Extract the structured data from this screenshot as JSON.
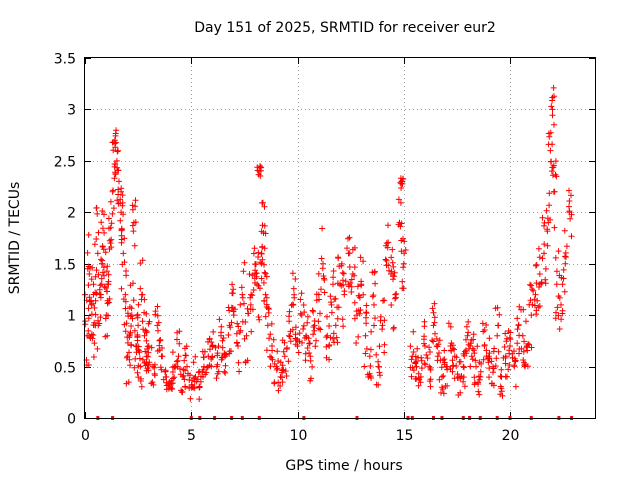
{
  "chart_data": {
    "type": "scatter",
    "title": "Day 151 of 2025, SRMTID for receiver eur2",
    "xlabel": "GPS time / hours",
    "ylabel": "SRMTID / TECUs",
    "xlim": [
      0,
      24
    ],
    "ylim": [
      0,
      3.5
    ],
    "xticks": [
      0,
      5,
      10,
      15,
      20
    ],
    "xtick_labels": [
      "0",
      "5",
      "10",
      "15",
      "20"
    ],
    "yticks": [
      0,
      0.5,
      1,
      1.5,
      2,
      2.5,
      3,
      3.5
    ],
    "ytick_labels": [
      "0",
      "0.5",
      "1",
      "1.5",
      "2",
      "2.5",
      "3",
      "3.5"
    ],
    "grid": true,
    "marker": "+",
    "series_color": "#ff0000",
    "zero_markers_x": [
      0.6,
      1.3,
      5.0,
      5.4,
      6.1,
      6.9,
      7.4,
      8.2,
      10.3,
      12.8,
      15.2,
      15.4,
      16.4,
      16.8,
      17.8,
      18.1,
      18.6,
      19.4,
      20.0,
      21.0,
      22.3,
      22.9
    ],
    "points": {
      "x": [
        0.0,
        0.1,
        0.2,
        0.3,
        0.4,
        0.5,
        0.6,
        0.7,
        0.8,
        0.9,
        1.0,
        1.1,
        1.2,
        1.3,
        1.4,
        1.5,
        1.6,
        1.7,
        1.8,
        1.9,
        2.0,
        2.1,
        2.2,
        2.3,
        2.4,
        2.5,
        2.6,
        2.7,
        2.8,
        2.9,
        3.0,
        3.2,
        3.4,
        3.6,
        3.8,
        4.0,
        4.2,
        4.4,
        4.6,
        4.8,
        5.0,
        5.2,
        5.4,
        5.6,
        5.8,
        6.0,
        6.2,
        6.4,
        6.6,
        6.8,
        7.0,
        7.2,
        7.4,
        7.6,
        7.8,
        8.0,
        8.1,
        8.2,
        8.3,
        8.4,
        8.5,
        8.6,
        8.8,
        9.0,
        9.2,
        9.4,
        9.6,
        9.8,
        10.0,
        10.2,
        10.4,
        10.6,
        10.8,
        11.0,
        11.2,
        11.4,
        11.6,
        11.8,
        12.0,
        12.2,
        12.4,
        12.6,
        12.8,
        13.0,
        13.2,
        13.4,
        13.6,
        13.8,
        14.0,
        14.2,
        14.4,
        14.6,
        14.8,
        14.9,
        15.0,
        15.4,
        15.6,
        15.8,
        16.0,
        16.2,
        16.4,
        16.6,
        16.8,
        17.0,
        17.2,
        17.4,
        17.6,
        17.8,
        18.0,
        18.2,
        18.4,
        18.6,
        18.8,
        19.0,
        19.2,
        19.4,
        19.6,
        19.8,
        20.0,
        20.2,
        20.4,
        20.6,
        20.8,
        21.0,
        21.2,
        21.4,
        21.6,
        21.8,
        21.9,
        22.0,
        22.1,
        22.2,
        22.4,
        22.6,
        22.8
      ],
      "y": [
        1.2,
        0.8,
        1.4,
        1.1,
        1.3,
        0.9,
        1.6,
        1.2,
        1.5,
        1.8,
        1.0,
        1.3,
        1.7,
        2.2,
        2.7,
        2.5,
        2.3,
        2.0,
        1.6,
        1.2,
        0.6,
        0.8,
        1.0,
        1.9,
        0.7,
        0.9,
        0.5,
        1.2,
        0.8,
        0.6,
        0.7,
        0.5,
        0.9,
        0.6,
        0.4,
        0.3,
        0.5,
        0.6,
        0.4,
        0.5,
        0.3,
        0.4,
        0.3,
        0.5,
        0.6,
        0.7,
        0.5,
        0.8,
        0.6,
        0.9,
        1.0,
        0.7,
        1.2,
        0.8,
        1.1,
        1.4,
        1.3,
        2.4,
        1.6,
        1.8,
        1.2,
        0.9,
        0.7,
        0.5,
        0.4,
        0.6,
        0.8,
        1.1,
        0.7,
        1.0,
        0.8,
        0.6,
        0.9,
        1.2,
        1.5,
        0.8,
        1.1,
        0.9,
        1.3,
        1.2,
        1.6,
        1.4,
        1.0,
        1.3,
        0.8,
        0.6,
        1.1,
        0.5,
        0.9,
        1.7,
        1.4,
        1.2,
        1.9,
        2.3,
        1.5,
        0.6,
        0.5,
        0.4,
        0.7,
        0.5,
        0.9,
        0.6,
        0.4,
        0.5,
        0.7,
        0.6,
        0.4,
        0.5,
        0.8,
        0.6,
        0.5,
        0.4,
        0.7,
        0.6,
        0.5,
        0.8,
        0.4,
        0.6,
        0.7,
        0.5,
        0.9,
        0.8,
        0.7,
        1.0,
        1.2,
        1.4,
        1.6,
        1.9,
        2.6,
        3.0,
        2.2,
        1.3,
        1.1,
        1.5,
        2.0
      ],
      "spread": [
        0.4,
        0.35,
        0.4,
        0.45,
        0.4,
        0.35,
        0.45,
        0.4,
        0.45,
        0.4,
        0.3,
        0.35,
        0.4,
        0.35,
        0.1,
        0.15,
        0.25,
        0.3,
        0.35,
        0.4,
        0.3,
        0.3,
        0.35,
        0.25,
        0.3,
        0.3,
        0.2,
        0.35,
        0.3,
        0.25,
        0.25,
        0.2,
        0.25,
        0.2,
        0.15,
        0.1,
        0.2,
        0.25,
        0.2,
        0.2,
        0.15,
        0.2,
        0.15,
        0.2,
        0.25,
        0.25,
        0.2,
        0.25,
        0.2,
        0.3,
        0.3,
        0.25,
        0.35,
        0.3,
        0.35,
        0.4,
        0.35,
        0.05,
        0.35,
        0.3,
        0.3,
        0.3,
        0.25,
        0.2,
        0.15,
        0.2,
        0.25,
        0.35,
        0.25,
        0.3,
        0.3,
        0.25,
        0.3,
        0.35,
        0.35,
        0.3,
        0.35,
        0.3,
        0.35,
        0.35,
        0.35,
        0.35,
        0.3,
        0.35,
        0.3,
        0.25,
        0.35,
        0.2,
        0.3,
        0.3,
        0.35,
        0.35,
        0.35,
        0.05,
        0.35,
        0.25,
        0.2,
        0.2,
        0.25,
        0.2,
        0.35,
        0.25,
        0.2,
        0.2,
        0.25,
        0.25,
        0.2,
        0.2,
        0.3,
        0.25,
        0.2,
        0.2,
        0.25,
        0.25,
        0.2,
        0.3,
        0.2,
        0.25,
        0.25,
        0.2,
        0.3,
        0.3,
        0.3,
        0.35,
        0.35,
        0.35,
        0.35,
        0.3,
        0.2,
        0.35,
        0.35,
        0.35,
        0.3,
        0.35,
        0.25
      ]
    }
  }
}
